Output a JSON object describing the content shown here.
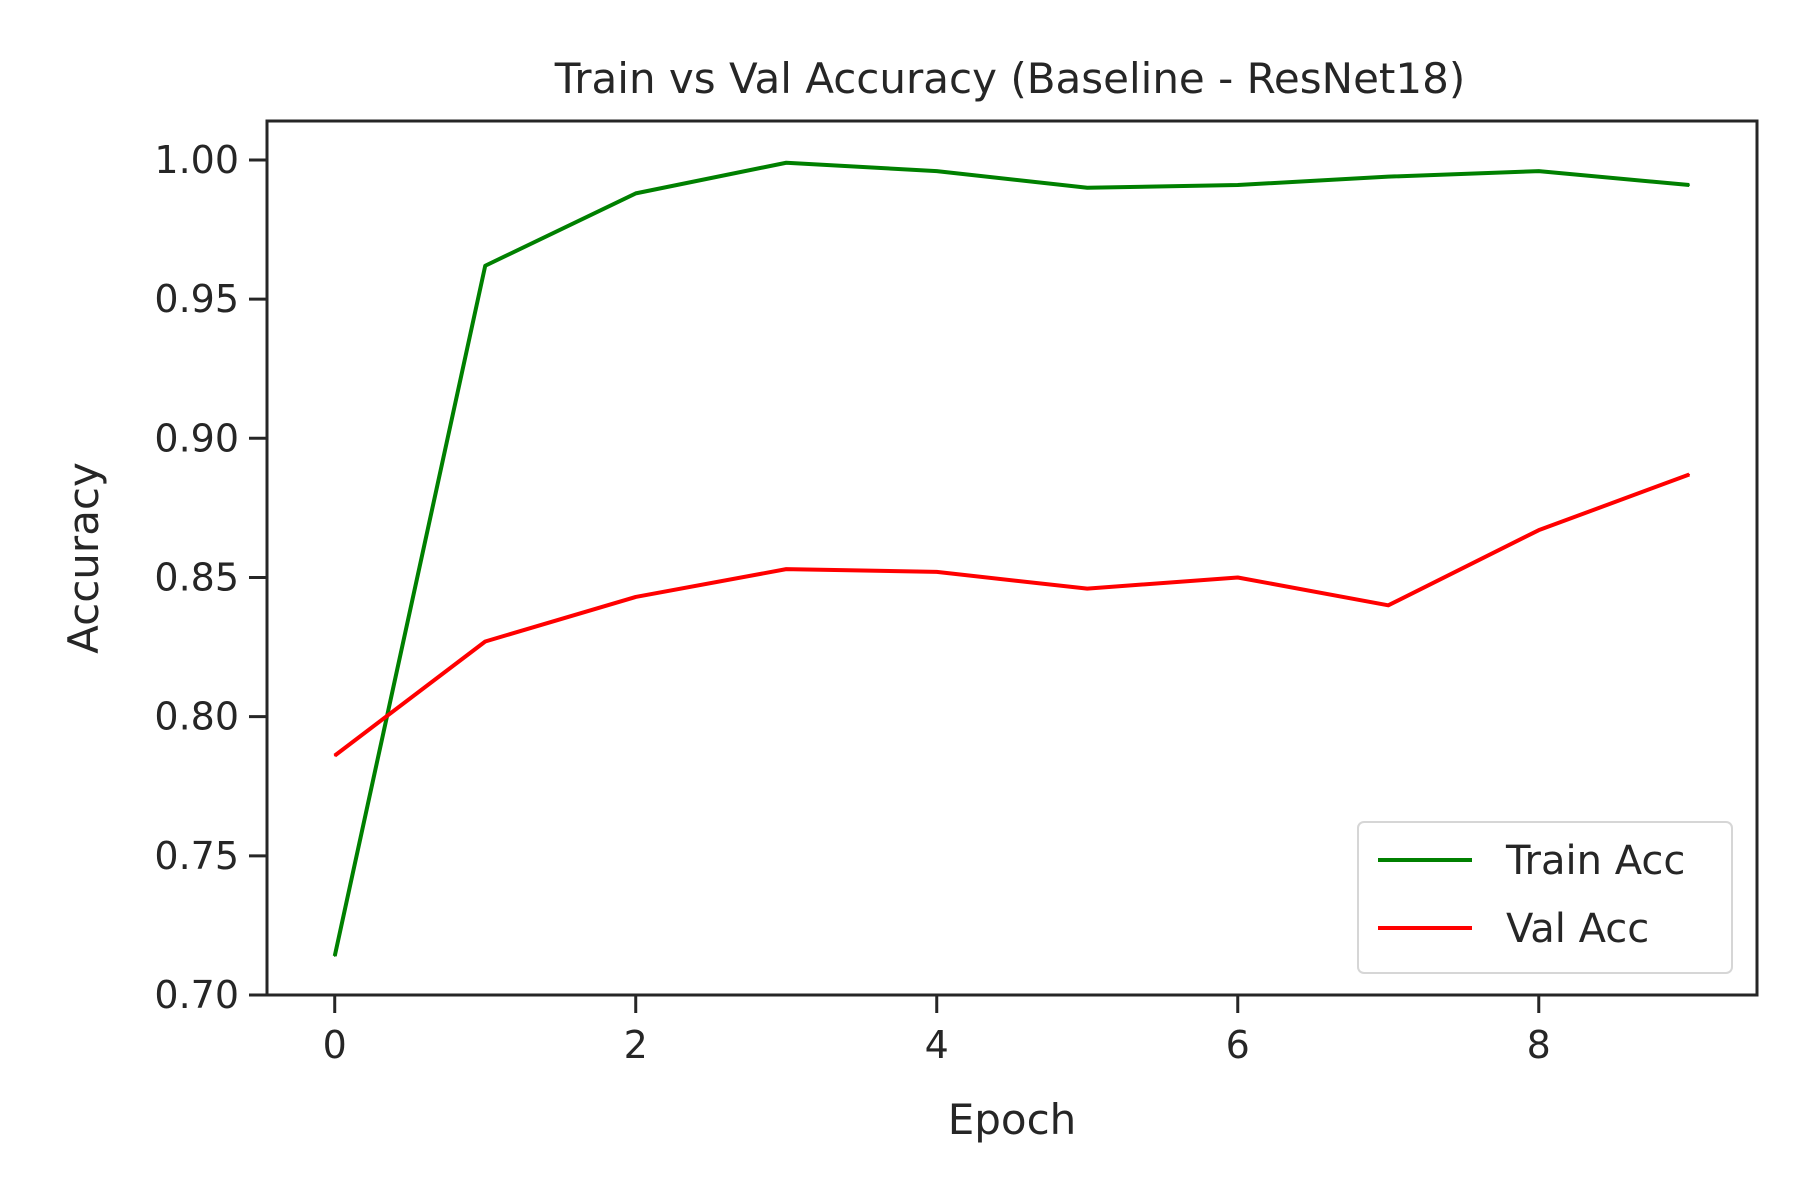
{
  "chart_data": {
    "type": "line",
    "title": "Train vs Val Accuracy (Baseline - ResNet18)",
    "xlabel": "Epoch",
    "ylabel": "Accuracy",
    "x": [
      0,
      1,
      2,
      3,
      4,
      5,
      6,
      7,
      8,
      9
    ],
    "xlim": [
      -0.45,
      9.45
    ],
    "ylim": [
      0.7,
      1.014
    ],
    "xticks": [
      0,
      2,
      4,
      6,
      8
    ],
    "xtick_labels": [
      "0",
      "2",
      "4",
      "6",
      "8"
    ],
    "yticks": [
      0.7,
      0.75,
      0.8,
      0.85,
      0.9,
      0.95,
      1.0
    ],
    "ytick_labels": [
      "0.70",
      "0.75",
      "0.80",
      "0.85",
      "0.90",
      "0.95",
      "1.00"
    ],
    "grid": false,
    "legend_position": "lower-right",
    "series": [
      {
        "name": "Train Acc",
        "color": "#008000",
        "values": [
          0.714,
          0.962,
          0.988,
          0.999,
          0.996,
          0.99,
          0.991,
          0.994,
          0.996,
          0.991
        ]
      },
      {
        "name": "Val Acc",
        "color": "#ff0000",
        "values": [
          0.786,
          0.827,
          0.843,
          0.853,
          0.852,
          0.846,
          0.85,
          0.84,
          0.867,
          0.887
        ]
      }
    ]
  }
}
